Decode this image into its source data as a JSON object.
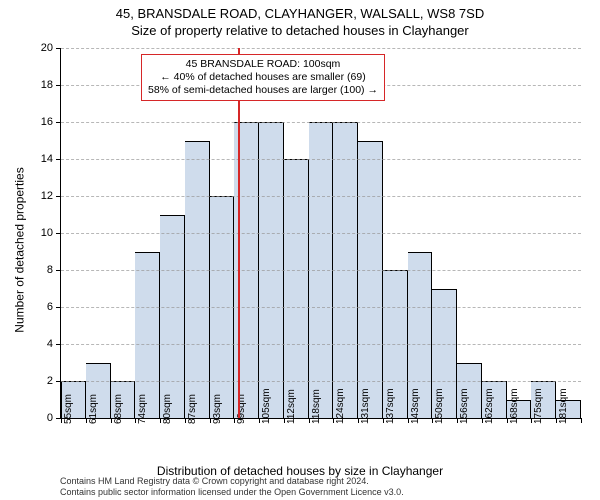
{
  "title_line1": "45, BRANSDALE ROAD, CLAYHANGER, WALSALL, WS8 7SD",
  "title_line2": "Size of property relative to detached houses in Clayhanger",
  "y_axis_label": "Number of detached properties",
  "x_axis_label": "Distribution of detached houses by size in Clayhanger",
  "callout": {
    "line1": "45 BRANSDALE ROAD: 100sqm",
    "line2": "← 40% of detached houses are smaller (69)",
    "line3": "58% of semi-detached houses are larger (100) →",
    "border_color": "#d62728"
  },
  "reference": {
    "value_sqm": 100,
    "color": "#d62728"
  },
  "histogram": {
    "type": "histogram",
    "bar_fill": "#cfdcec",
    "bar_border": "#000000",
    "grid_color": "#999999",
    "background": "#ffffff",
    "ylim": [
      0,
      20
    ],
    "ytick_step": 2,
    "x_start": 55,
    "x_step": 6.3,
    "x_label_suffix": "sqm",
    "x_labels": [
      "55sqm",
      "61sqm",
      "68sqm",
      "74sqm",
      "80sqm",
      "87sqm",
      "93sqm",
      "99sqm",
      "105sqm",
      "112sqm",
      "118sqm",
      "124sqm",
      "131sqm",
      "137sqm",
      "143sqm",
      "150sqm",
      "156sqm",
      "162sqm",
      "168sqm",
      "175sqm",
      "181sqm"
    ],
    "counts": [
      2,
      3,
      2,
      9,
      11,
      15,
      12,
      16,
      16,
      14,
      16,
      16,
      15,
      8,
      9,
      7,
      3,
      2,
      1,
      2,
      1
    ]
  },
  "attribution": {
    "line1": "Contains HM Land Registry data © Crown copyright and database right 2024.",
    "line2": "Contains public sector information licensed under the Open Government Licence v3.0."
  },
  "fonts": {
    "title_pt": 13,
    "axis_label_pt": 12,
    "tick_pt": 11,
    "callout_pt": 10.5
  }
}
